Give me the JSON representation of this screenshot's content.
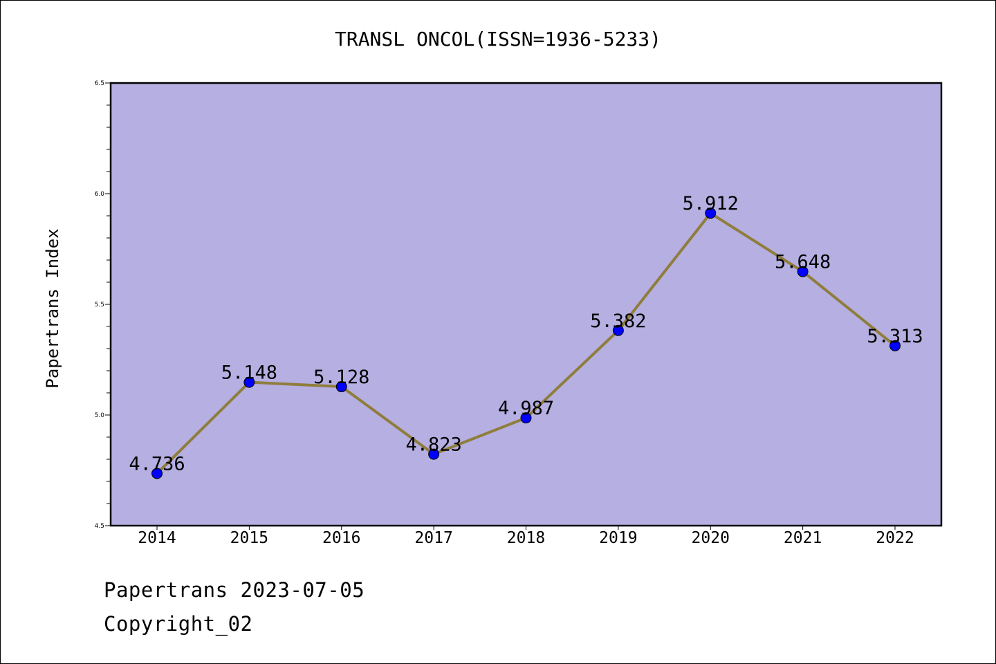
{
  "chart_data": {
    "type": "line",
    "title": "TRANSL ONCOL(ISSN=1936-5233)",
    "ylabel": "Papertrans Index",
    "xlabel": "",
    "categories": [
      "2014",
      "2015",
      "2016",
      "2017",
      "2018",
      "2019",
      "2020",
      "2021",
      "2022"
    ],
    "values": [
      4.736,
      5.148,
      5.128,
      4.823,
      4.987,
      5.382,
      5.912,
      5.648,
      5.313
    ],
    "data_labels": [
      "4.736",
      "5.148",
      "5.128",
      "4.823",
      "4.987",
      "5.382",
      "5.912",
      "5.648",
      "5.313"
    ],
    "ylim": [
      4.5,
      6.5
    ],
    "yticks": [
      "4.5",
      "5.0",
      "5.5",
      "6.0",
      "6.5"
    ],
    "grid": false,
    "colors": {
      "plot_background": "#b5afe2",
      "line": "#8f7d3c",
      "marker": "#0000ff",
      "axes": "#000000"
    }
  },
  "footer": {
    "date_text": "Papertrans 2023-07-05",
    "copyright_text": "Copyright_02"
  }
}
